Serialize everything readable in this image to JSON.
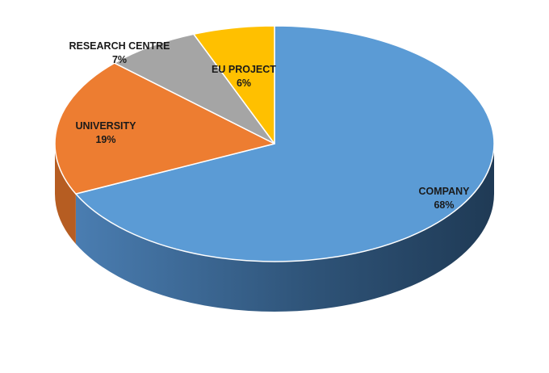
{
  "chart_data": {
    "type": "pie",
    "style": "3d",
    "legend": "none",
    "slices": [
      {
        "label": "COMPANY",
        "value": 68,
        "value_label": "68%",
        "color": "#5b9bd5",
        "side_color": "#3f6f9c"
      },
      {
        "label": "UNIVERSITY",
        "value": 19,
        "value_label": "19%",
        "color": "#ed7d31",
        "side_color": "#b65d22"
      },
      {
        "label": "RESEARCH CENTRE",
        "value": 7,
        "value_label": "7%",
        "color": "#a5a5a5",
        "side_color": "#7d7d7d"
      },
      {
        "label": "EU PROJECT",
        "value": 6,
        "value_label": "6%",
        "color": "#ffc000",
        "side_color": "#c79500"
      }
    ]
  }
}
